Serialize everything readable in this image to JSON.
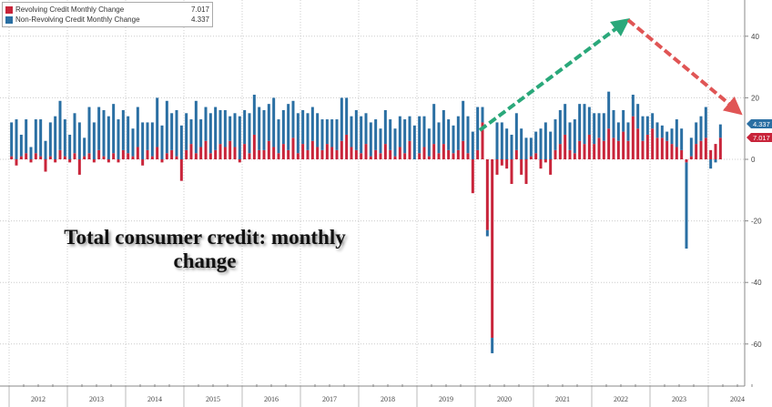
{
  "chart_data": {
    "type": "bar",
    "stacked": true,
    "title": "",
    "annotation": "Total consumer credit: monthly change",
    "xlabel": "",
    "ylabel": "",
    "x_start": "2012-01",
    "frequency": "monthly",
    "x_tick_labels": [
      "2012",
      "2013",
      "2014",
      "2015",
      "2016",
      "2017",
      "2018",
      "2019",
      "2020",
      "2021",
      "2022",
      "2023",
      "2024"
    ],
    "y_ticks": [
      40,
      20,
      0,
      -20,
      -40,
      -60
    ],
    "ylim": [
      -70,
      52
    ],
    "grid": true,
    "y_axis_position": "right",
    "legend_position": "top-left",
    "series": [
      {
        "name": "Revolving Credit Monthly Change",
        "last_value": "7.017",
        "color": "#c8243a",
        "values": [
          1,
          -2,
          1,
          2,
          -1,
          2,
          1,
          -4,
          1,
          -1,
          3,
          1,
          -1,
          2,
          -5,
          1,
          2,
          -1,
          3,
          1,
          -1,
          2,
          -1,
          3,
          2,
          1,
          4,
          -2,
          3,
          1,
          4,
          -1,
          2,
          3,
          1,
          -7,
          3,
          5,
          2,
          4,
          6,
          2,
          3,
          5,
          4,
          6,
          4,
          -1,
          5,
          2,
          8,
          3,
          3,
          6,
          4,
          2,
          5,
          3,
          7,
          2,
          5,
          3,
          6,
          4,
          3,
          5,
          4,
          3,
          6,
          8,
          4,
          3,
          2,
          5,
          1,
          3,
          2,
          5,
          3,
          1,
          4,
          2,
          6,
          0,
          2,
          4,
          1,
          5,
          2,
          5,
          3,
          2,
          3,
          6,
          2,
          -11,
          3,
          12,
          -23,
          -58,
          -5,
          -2,
          -3,
          -8,
          3,
          -5,
          -8,
          1,
          2,
          -3,
          -1,
          -5,
          3,
          5,
          8,
          3,
          2,
          6,
          5,
          8,
          5,
          7,
          6,
          10,
          7,
          6,
          9,
          6,
          14,
          10,
          6,
          8,
          10,
          7,
          7,
          6,
          5,
          4,
          3,
          -1,
          1,
          5,
          6,
          7,
          3,
          5,
          7.017
        ]
      },
      {
        "name": "Non-Revolving Credit Monthly Change",
        "last_value": "4.337",
        "color": "#2a6fa3",
        "values": [
          11,
          13,
          7,
          11,
          4,
          11,
          12,
          6,
          11,
          14,
          16,
          12,
          8,
          13,
          12,
          6,
          15,
          12,
          14,
          15,
          14,
          16,
          13,
          13,
          12,
          9,
          13,
          12,
          9,
          11,
          16,
          11,
          17,
          12,
          15,
          11,
          12,
          8,
          17,
          9,
          11,
          13,
          14,
          11,
          12,
          8,
          11,
          14,
          11,
          13,
          13,
          14,
          13,
          12,
          16,
          11,
          11,
          15,
          12,
          13,
          11,
          12,
          11,
          11,
          10,
          8,
          9,
          10,
          14,
          12,
          10,
          13,
          12,
          10,
          11,
          10,
          8,
          11,
          10,
          9,
          10,
          11,
          8,
          11,
          12,
          10,
          9,
          13,
          10,
          11,
          10,
          9,
          11,
          13,
          12,
          9,
          14,
          5,
          -2,
          -5,
          12,
          12,
          10,
          8,
          12,
          10,
          7,
          6,
          7,
          10,
          12,
          9,
          10,
          11,
          10,
          9,
          11,
          12,
          13,
          9,
          10,
          8,
          9,
          12,
          9,
          6,
          7,
          6,
          7,
          8,
          8,
          6,
          5,
          5,
          4,
          3,
          5,
          9,
          7,
          -28,
          6,
          7,
          8,
          10,
          -3,
          -1,
          4.337
        ]
      }
    ],
    "trend_arrows": [
      {
        "color": "#2aa87a",
        "from": "2020-05",
        "to": "2022-01",
        "direction": "up"
      },
      {
        "color": "#e05555",
        "from": "2022-01",
        "to": "2024-03",
        "direction": "down"
      }
    ]
  }
}
